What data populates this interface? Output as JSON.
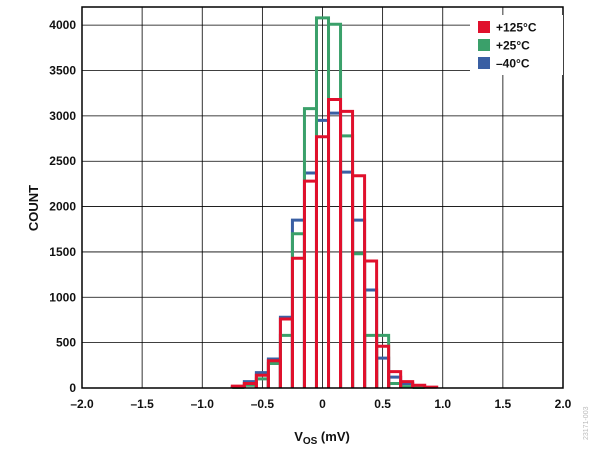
{
  "chart_data": {
    "type": "histogram",
    "title": "",
    "xlabel_main": "V",
    "xlabel_sub": "OS",
    "xlabel_unit": " (mV)",
    "ylabel": "COUNT",
    "xlim": [
      -2.0,
      2.0
    ],
    "ylim": [
      0,
      4200
    ],
    "grid": true,
    "legend_position": "top-right",
    "bin_width": 0.1,
    "x_ticks": [
      {
        "value": -2.0,
        "label": "–2.0"
      },
      {
        "value": -1.5,
        "label": "–1.5"
      },
      {
        "value": -1.0,
        "label": "–1.0"
      },
      {
        "value": -0.5,
        "label": "–0.5"
      },
      {
        "value": 0.0,
        "label": "0"
      },
      {
        "value": 0.5,
        "label": "0.5"
      },
      {
        "value": 1.0,
        "label": "1.0"
      },
      {
        "value": 1.5,
        "label": "1.5"
      },
      {
        "value": 2.0,
        "label": "2.0"
      }
    ],
    "y_ticks": [
      {
        "value": 0,
        "label": "0"
      },
      {
        "value": 500,
        "label": "500"
      },
      {
        "value": 1000,
        "label": "1000"
      },
      {
        "value": 1500,
        "label": "1500"
      },
      {
        "value": 2000,
        "label": "2000"
      },
      {
        "value": 2500,
        "label": "2500"
      },
      {
        "value": 3000,
        "label": "3000"
      },
      {
        "value": 3500,
        "label": "3500"
      },
      {
        "value": 4000,
        "label": "4000"
      }
    ],
    "bin_centers": [
      -0.7,
      -0.6,
      -0.5,
      -0.4,
      -0.3,
      -0.2,
      -0.1,
      0.0,
      0.1,
      0.2,
      0.3,
      0.4,
      0.5,
      0.6,
      0.7,
      0.8,
      0.9
    ],
    "series": [
      {
        "name": "–40°C",
        "color": "#3a5fa3",
        "values": [
          10,
          70,
          170,
          320,
          780,
          1850,
          2370,
          2950,
          3030,
          2380,
          1850,
          1080,
          330,
          120,
          50,
          10,
          0
        ]
      },
      {
        "name": "+25°C",
        "color": "#3aa06a",
        "values": [
          5,
          30,
          100,
          270,
          580,
          1700,
          3080,
          4080,
          4010,
          2780,
          1480,
          580,
          580,
          50,
          15,
          5,
          0
        ]
      },
      {
        "name": "+125°C",
        "color": "#e0102c",
        "values": [
          20,
          50,
          140,
          300,
          760,
          1430,
          2280,
          2770,
          3180,
          3050,
          2340,
          1400,
          460,
          180,
          70,
          30,
          10
        ]
      }
    ],
    "legend": [
      {
        "label": "+125°C",
        "color": "#e0102c"
      },
      {
        "label": "+25°C",
        "color": "#3aa06a"
      },
      {
        "label": "–40°C",
        "color": "#3a5fa3"
      }
    ]
  },
  "figure_id": "23171-003"
}
